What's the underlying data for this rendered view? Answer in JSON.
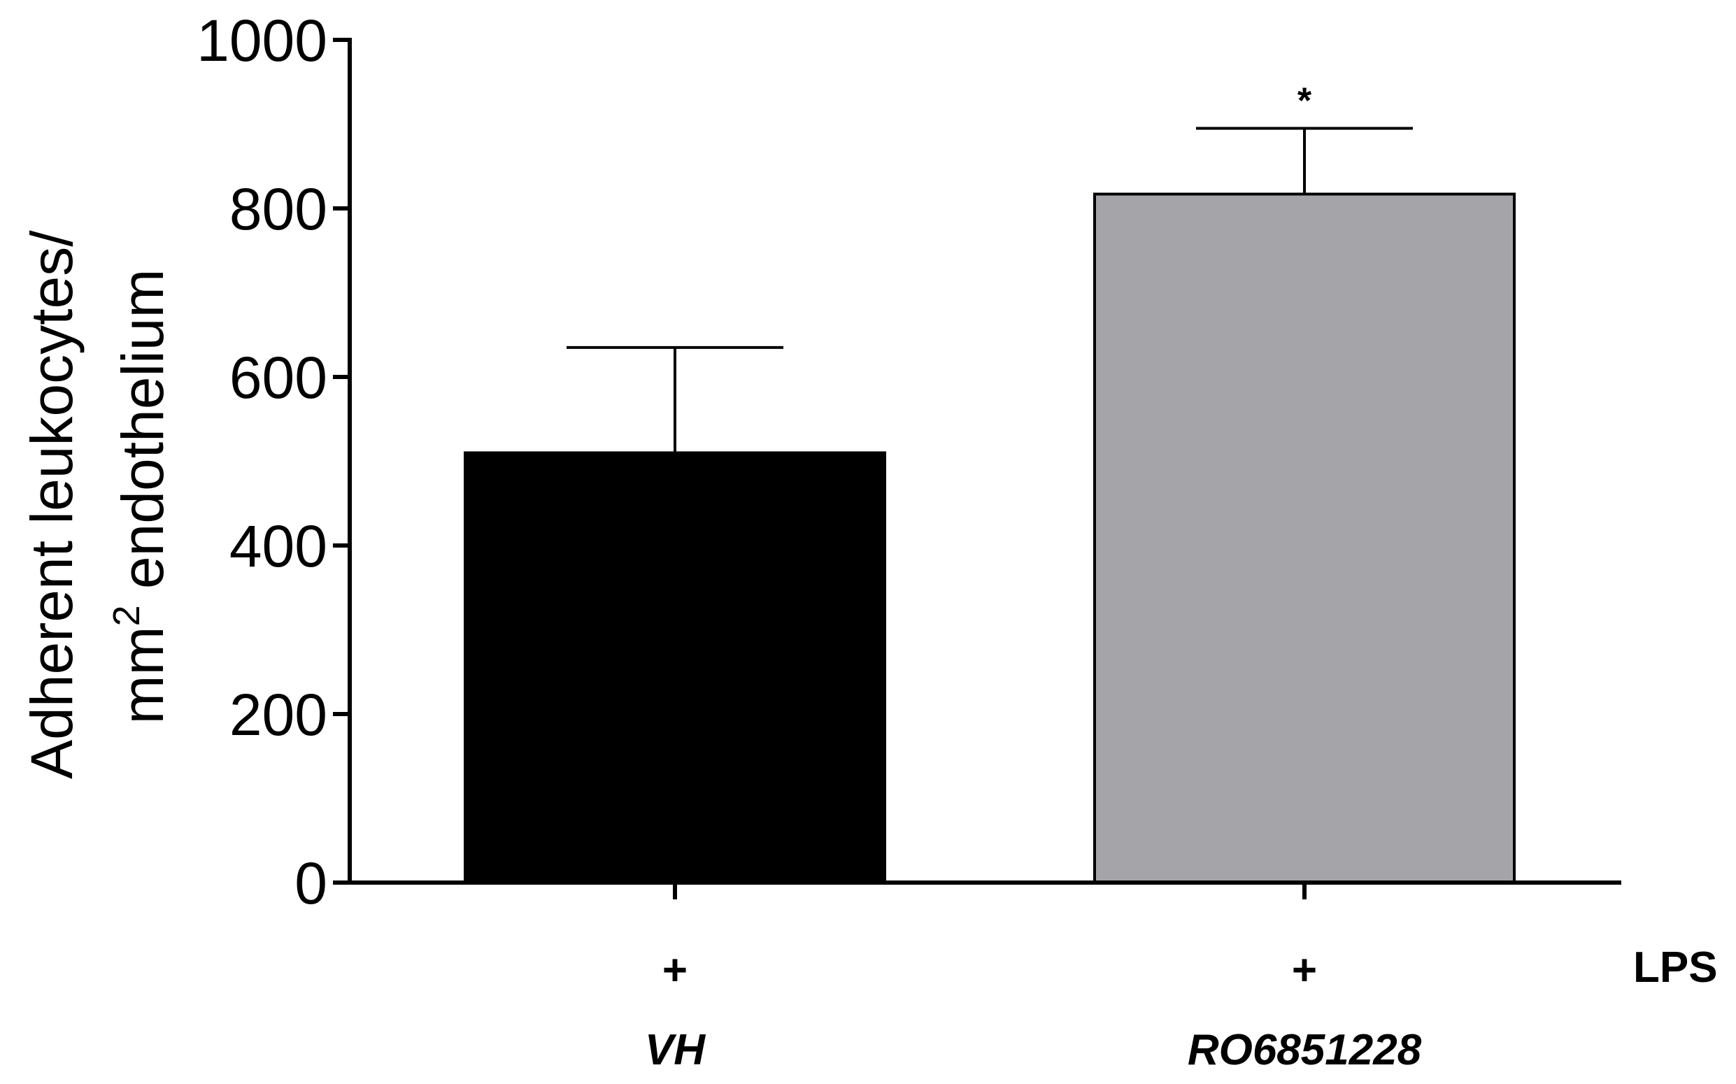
{
  "chart_data": {
    "type": "bar",
    "categories": [
      "VH",
      "RO6851228"
    ],
    "values": [
      510,
      817
    ],
    "errors": [
      125,
      78
    ],
    "bar_colors": [
      "#000000",
      "#a5a4a8"
    ],
    "annotations": [
      "",
      "*"
    ],
    "ylabel_line1": "Adherent leukocytes/",
    "ylabel_line2_prefix": "mm",
    "ylabel_line2_sup": "2",
    "ylabel_line2_suffix": " endothelium",
    "ylim": [
      0,
      1000
    ],
    "yticks": [
      0,
      200,
      400,
      600,
      800,
      1000
    ],
    "treatment_row": {
      "label": "LPS",
      "marks": [
        "+",
        "+"
      ]
    },
    "grid": false,
    "legend": "none"
  }
}
